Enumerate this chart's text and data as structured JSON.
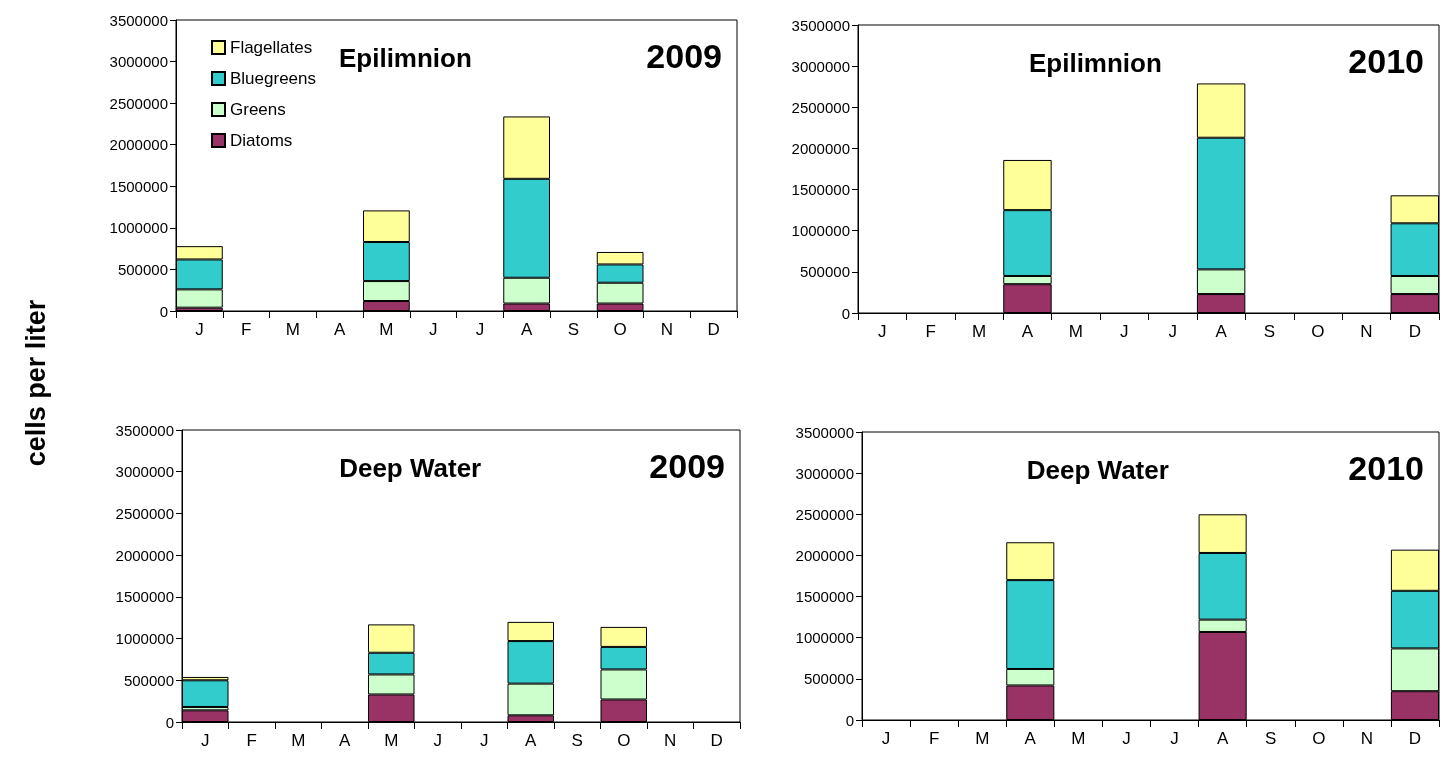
{
  "chart_data": [
    {
      "type": "bar",
      "title": "Epilimnion",
      "subtitle": "2009",
      "ylabel": "cells per liter",
      "stacked": true,
      "legend": "top left",
      "grid": false,
      "categories": [
        "J",
        "F",
        "M",
        "A",
        "M",
        "J",
        "J",
        "A",
        "S",
        "O",
        "N",
        "D"
      ],
      "ylim": [
        0,
        3500000
      ],
      "yticks": [
        0,
        500000,
        1000000,
        1500000,
        2000000,
        2500000,
        3000000,
        3500000
      ],
      "series": [
        {
          "name": "Diatoms",
          "color": "#993366",
          "values": [
            40000,
            null,
            null,
            null,
            120000,
            null,
            null,
            90000,
            null,
            90000,
            null,
            null
          ]
        },
        {
          "name": "Greens",
          "color": "#ccffcc",
          "values": [
            220000,
            null,
            null,
            null,
            240000,
            null,
            null,
            310000,
            null,
            250000,
            null,
            null
          ]
        },
        {
          "name": "Bluegreens",
          "color": "#33cccc",
          "values": [
            360000,
            null,
            null,
            null,
            470000,
            null,
            null,
            1190000,
            null,
            220000,
            null,
            null
          ]
        },
        {
          "name": "Flagellates",
          "color": "#ffff99",
          "values": [
            160000,
            null,
            null,
            null,
            380000,
            null,
            null,
            750000,
            null,
            150000,
            null,
            null
          ]
        }
      ]
    },
    {
      "type": "bar",
      "title": "Epilimnion",
      "subtitle": "2010",
      "stacked": true,
      "grid": false,
      "categories": [
        "J",
        "F",
        "M",
        "A",
        "M",
        "J",
        "J",
        "A",
        "S",
        "O",
        "N",
        "D"
      ],
      "ylim": [
        0,
        3500000
      ],
      "yticks": [
        0,
        500000,
        1000000,
        1500000,
        2000000,
        2500000,
        3000000,
        3500000
      ],
      "series": [
        {
          "color": "#993366",
          "values": [
            null,
            null,
            null,
            350000,
            null,
            null,
            null,
            230000,
            null,
            null,
            null,
            230000
          ]
        },
        {
          "color": "#ccffcc",
          "values": [
            null,
            null,
            null,
            100000,
            null,
            null,
            null,
            300000,
            null,
            null,
            null,
            220000
          ]
        },
        {
          "color": "#33cccc",
          "values": [
            null,
            null,
            null,
            800000,
            null,
            null,
            null,
            1600000,
            null,
            null,
            null,
            640000
          ]
        },
        {
          "color": "#ffff99",
          "values": [
            null,
            null,
            null,
            610000,
            null,
            null,
            null,
            660000,
            null,
            null,
            null,
            340000
          ]
        }
      ]
    },
    {
      "type": "bar",
      "title": "Deep Water",
      "subtitle": "2009",
      "stacked": true,
      "grid": false,
      "categories": [
        "J",
        "F",
        "M",
        "A",
        "M",
        "J",
        "J",
        "A",
        "S",
        "O",
        "N",
        "D"
      ],
      "ylim": [
        0,
        3500000
      ],
      "yticks": [
        0,
        500000,
        1000000,
        1500000,
        2000000,
        2500000,
        3000000,
        3500000
      ],
      "series": [
        {
          "color": "#993366",
          "values": [
            140000,
            null,
            null,
            null,
            330000,
            null,
            null,
            80000,
            null,
            270000,
            null,
            null
          ]
        },
        {
          "color": "#ccffcc",
          "values": [
            40000,
            null,
            null,
            null,
            240000,
            null,
            null,
            380000,
            null,
            360000,
            null,
            null
          ]
        },
        {
          "color": "#33cccc",
          "values": [
            320000,
            null,
            null,
            null,
            260000,
            null,
            null,
            510000,
            null,
            270000,
            null,
            null
          ]
        },
        {
          "color": "#ffff99",
          "values": [
            40000,
            null,
            null,
            null,
            340000,
            null,
            null,
            230000,
            null,
            240000,
            null,
            null
          ]
        }
      ]
    },
    {
      "type": "bar",
      "title": "Deep Water",
      "subtitle": "2010",
      "stacked": true,
      "grid": false,
      "categories": [
        "J",
        "F",
        "M",
        "A",
        "M",
        "J",
        "J",
        "A",
        "S",
        "O",
        "N",
        "D"
      ],
      "ylim": [
        0,
        3500000
      ],
      "yticks": [
        0,
        500000,
        1000000,
        1500000,
        2000000,
        2500000,
        3000000,
        3500000
      ],
      "series": [
        {
          "color": "#993366",
          "values": [
            null,
            null,
            null,
            420000,
            null,
            null,
            null,
            1070000,
            null,
            null,
            null,
            350000
          ]
        },
        {
          "color": "#ccffcc",
          "values": [
            null,
            null,
            null,
            200000,
            null,
            null,
            null,
            150000,
            null,
            null,
            null,
            520000
          ]
        },
        {
          "color": "#33cccc",
          "values": [
            null,
            null,
            null,
            1080000,
            null,
            null,
            null,
            810000,
            null,
            null,
            null,
            700000
          ]
        },
        {
          "color": "#ffff99",
          "values": [
            null,
            null,
            null,
            460000,
            null,
            null,
            null,
            470000,
            null,
            null,
            null,
            500000
          ]
        }
      ]
    }
  ]
}
